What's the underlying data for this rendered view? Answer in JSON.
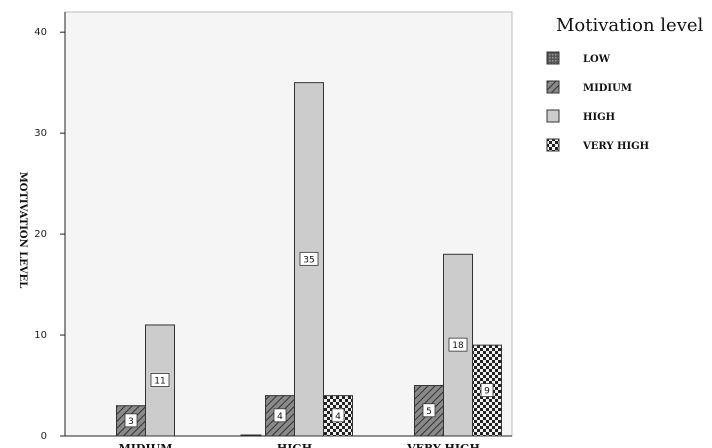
{
  "chart_data": {
    "type": "bar",
    "title": "",
    "ylabel": "MOTIVATION LEVEL",
    "xlabel": "",
    "categories": [
      "MIDIUM",
      "HIGH",
      "VERY HIGH"
    ],
    "ylim": [
      0,
      42
    ],
    "yticks": [
      "0",
      "10",
      "20",
      "30",
      "40"
    ],
    "series": [
      {
        "name": "LOW",
        "values": [
          0,
          0,
          0
        ],
        "labels": [
          "",
          "",
          ""
        ]
      },
      {
        "name": "MIDIUM",
        "values": [
          3,
          4,
          5
        ],
        "labels": [
          "3",
          "4",
          "5"
        ]
      },
      {
        "name": "HIGH",
        "values": [
          11,
          35,
          18
        ],
        "labels": [
          "11",
          "35",
          "18"
        ]
      },
      {
        "name": "VERY HIGH",
        "values": [
          0,
          4,
          9
        ],
        "labels": [
          "",
          "4",
          "9"
        ]
      }
    ],
    "legend": {
      "title": "Motivation level",
      "position": "top-right"
    },
    "grid": false
  },
  "colors": {
    "background": "#ffffff",
    "plot_background": "#f4f4f4",
    "bar_fill": "#c8c8c8",
    "bar_stroke": "#333333"
  }
}
